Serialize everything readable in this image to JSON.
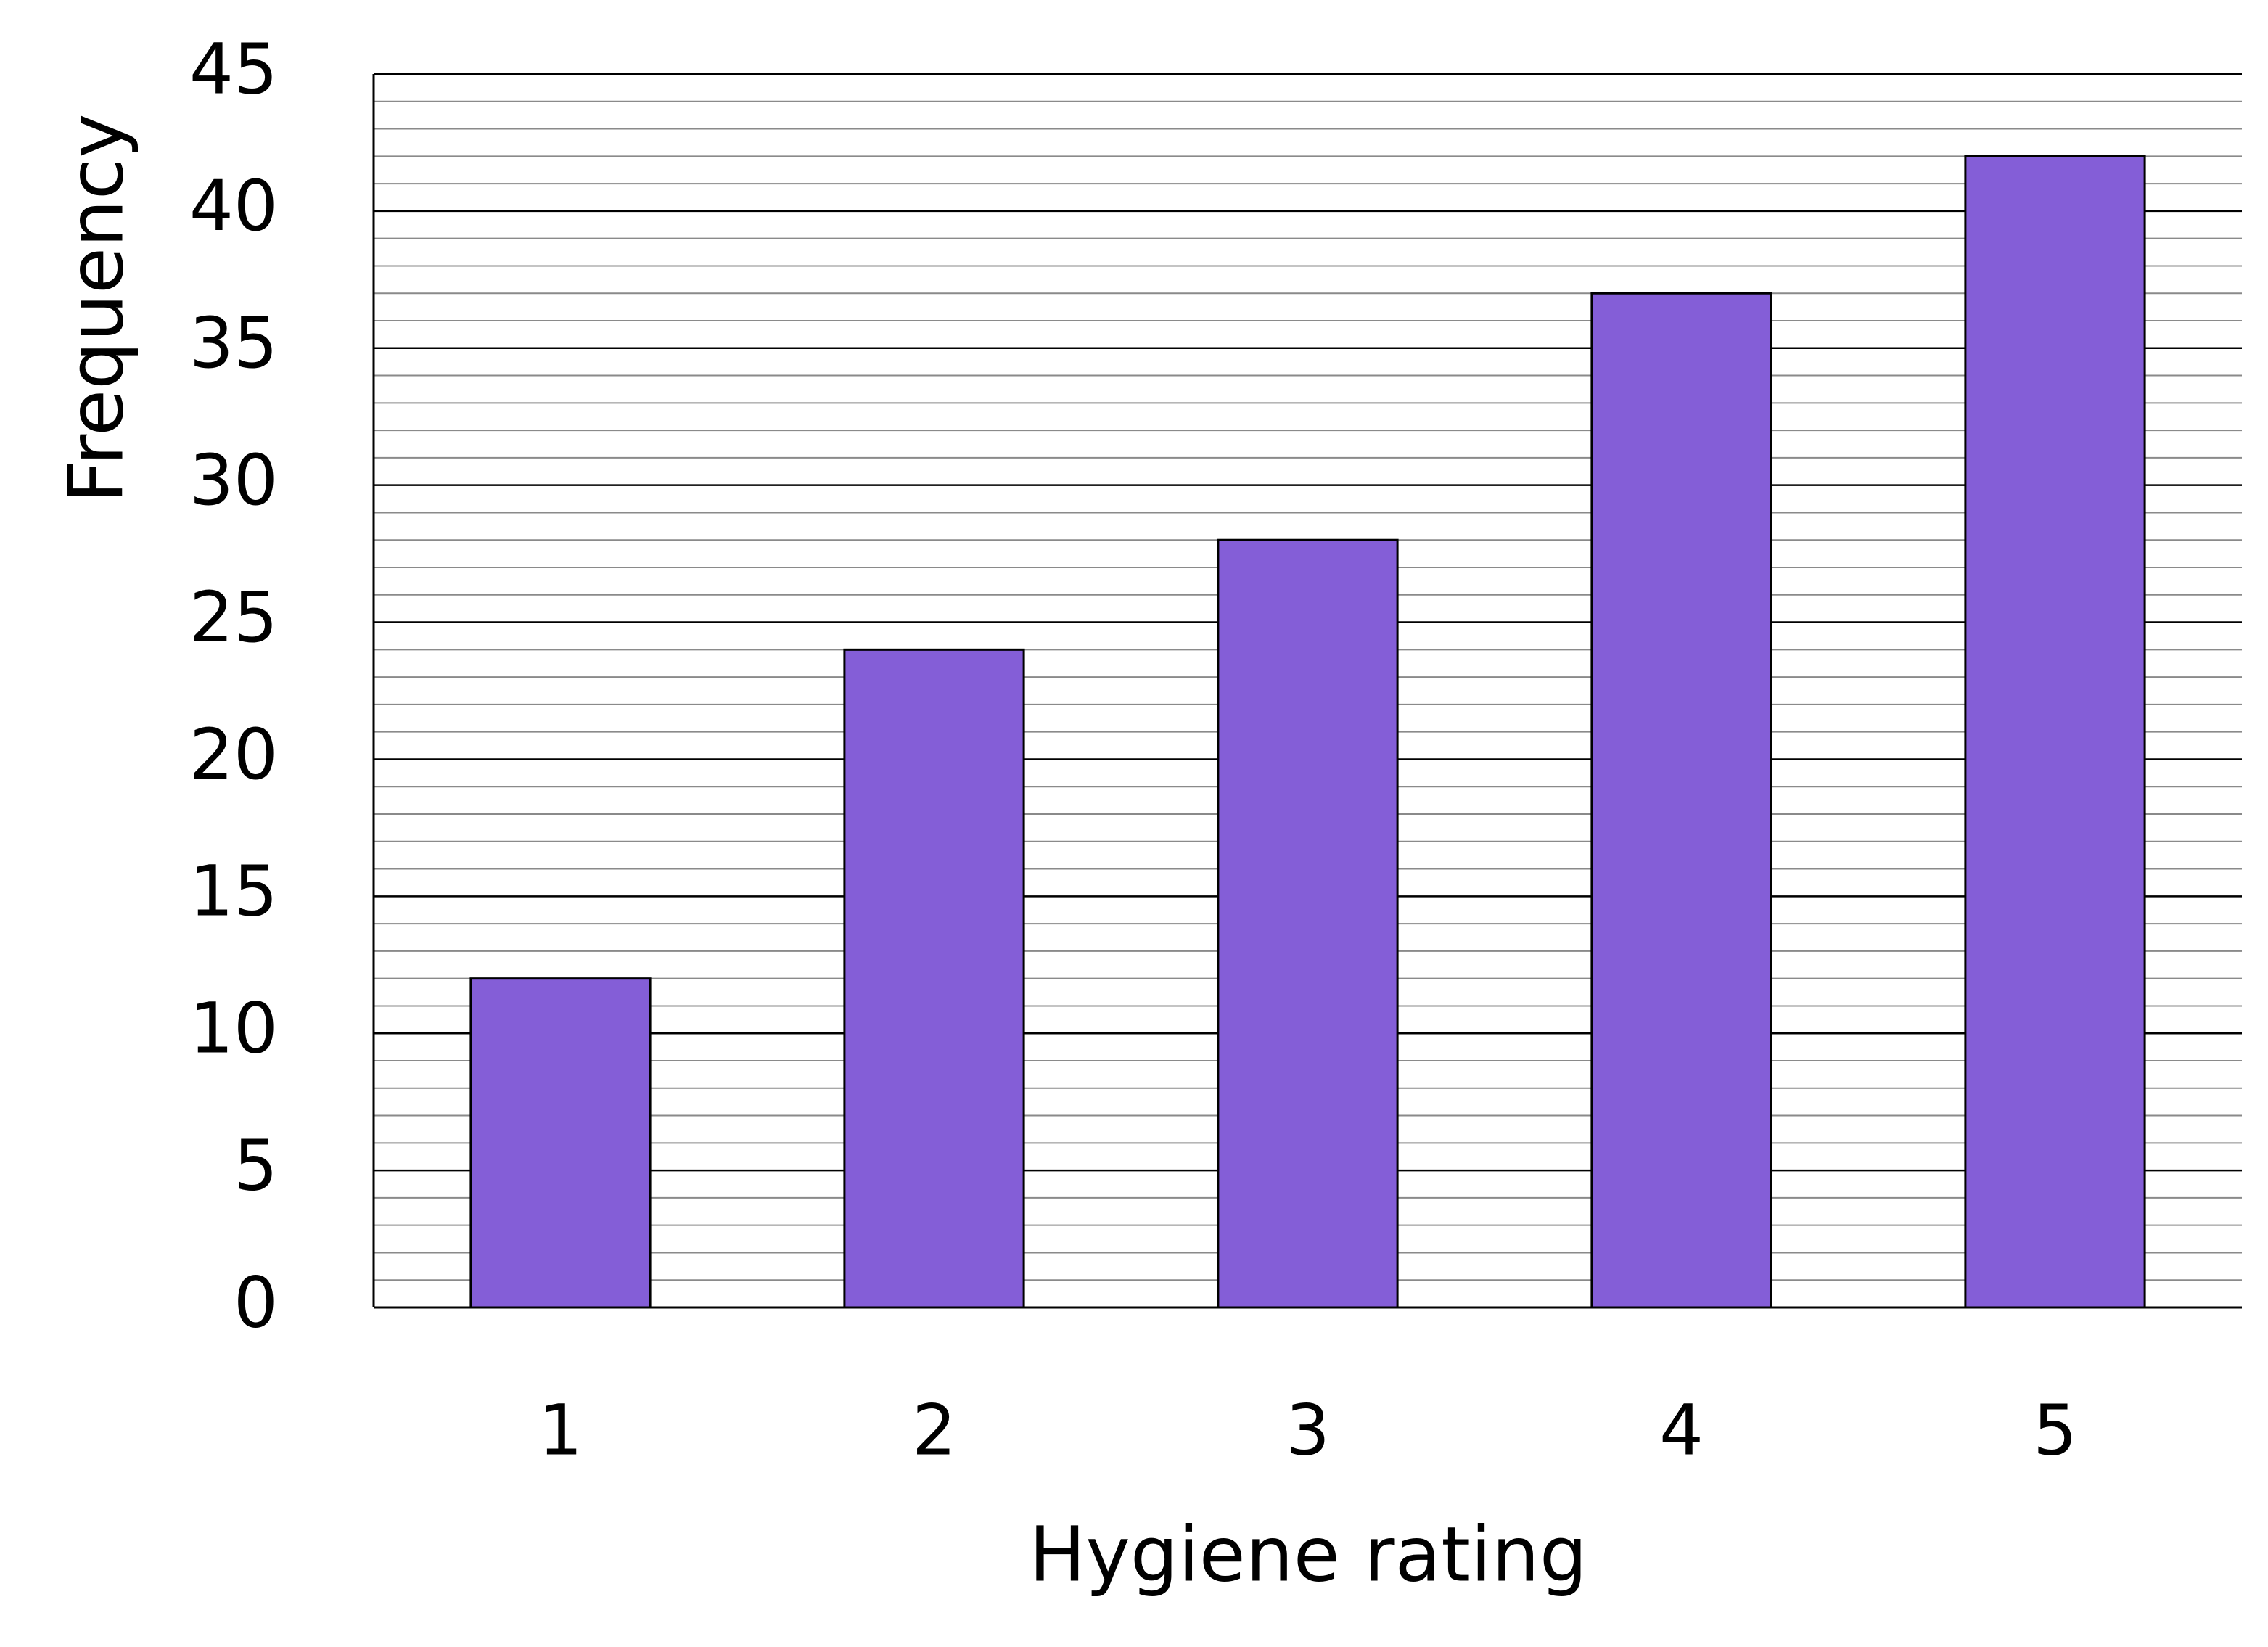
{
  "chart_data": {
    "type": "bar",
    "x_label": "Hygiene rating",
    "y_label": "Frequency",
    "categories": [
      "1",
      "2",
      "3",
      "4",
      "5"
    ],
    "values": [
      12,
      24,
      28,
      37,
      42
    ],
    "color": "#845ed7",
    "ylim": [
      0,
      45
    ],
    "yticks": [
      0,
      5,
      10,
      15,
      20,
      25,
      30,
      35,
      40,
      45
    ],
    "grid": true,
    "minor_grid": true
  }
}
